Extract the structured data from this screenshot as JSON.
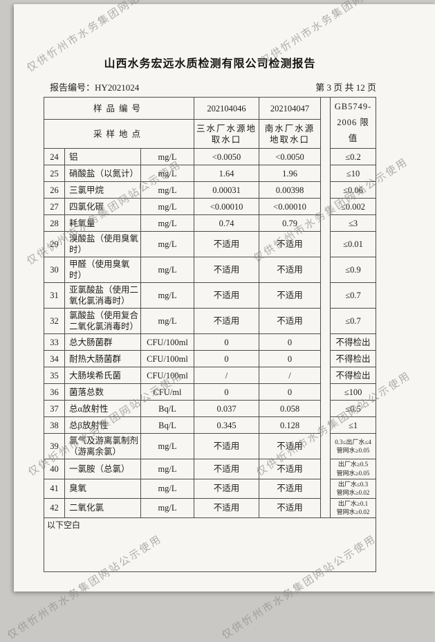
{
  "watermark": {
    "text": "仅供忻州市水务集团网站公示使用"
  },
  "header": {
    "title": "山西水务宏远水质检测有限公司检测报告",
    "report_no_label": "报告编号：",
    "report_no": "HY2021024",
    "page_info": "第 3 页 共 12 页"
  },
  "table": {
    "head": {
      "sample_id_label": "样品编号",
      "sampling_site_label": "采样地点",
      "sample1_id": "202104046",
      "sample2_id": "202104047",
      "sample1_site": "三水厂水源地取水口",
      "sample2_site": "南水厂水源地取水口",
      "limit_line1": "GB5749-",
      "limit_line2": "2006 限值"
    },
    "rows": [
      {
        "no": "24",
        "name": "铝",
        "unit": "mg/L",
        "v1": "<0.0050",
        "v2": "<0.0050",
        "limit": [
          "≤0.2"
        ]
      },
      {
        "no": "25",
        "name": "硝酸盐（以氮计）",
        "unit": "mg/L",
        "v1": "1.64",
        "v2": "1.96",
        "limit": [
          "≤10"
        ]
      },
      {
        "no": "26",
        "name": "三氯甲烷",
        "unit": "mg/L",
        "v1": "0.00031",
        "v2": "0.00398",
        "limit": [
          "≤0.06"
        ]
      },
      {
        "no": "27",
        "name": "四氯化碳",
        "unit": "mg/L",
        "v1": "<0.00010",
        "v2": "<0.00010",
        "limit": [
          "≤0.002"
        ]
      },
      {
        "no": "28",
        "name": "耗氧量",
        "unit": "mg/L",
        "v1": "0.74",
        "v2": "0.79",
        "limit": [
          "≤3"
        ]
      },
      {
        "no": "29",
        "name": "溴酸盐（使用臭氧时）",
        "unit": "mg/L",
        "v1": "不适用",
        "v2": "不适用",
        "limit": [
          "≤0.01"
        ]
      },
      {
        "no": "30",
        "name": "甲醛（使用臭氧时）",
        "unit": "mg/L",
        "v1": "不适用",
        "v2": "不适用",
        "limit": [
          "≤0.9"
        ]
      },
      {
        "no": "31",
        "name": "亚氯酸盐（使用二氧化氯消毒时）",
        "unit": "mg/L",
        "v1": "不适用",
        "v2": "不适用",
        "limit": [
          "≤0.7"
        ]
      },
      {
        "no": "32",
        "name": "氯酸盐（使用复合二氧化氯消毒时）",
        "unit": "mg/L",
        "v1": "不适用",
        "v2": "不适用",
        "limit": [
          "≤0.7"
        ]
      },
      {
        "no": "33",
        "name": "总大肠菌群",
        "unit": "CFU/100ml",
        "v1": "0",
        "v2": "0",
        "limit": [
          "不得检出"
        ]
      },
      {
        "no": "34",
        "name": "耐热大肠菌群",
        "unit": "CFU/100ml",
        "v1": "0",
        "v2": "0",
        "limit": [
          "不得检出"
        ]
      },
      {
        "no": "35",
        "name": "大肠埃希氏菌",
        "unit": "CFU/100ml",
        "v1": "/",
        "v2": "/",
        "limit": [
          "不得检出"
        ]
      },
      {
        "no": "36",
        "name": "菌落总数",
        "unit": "CFU/ml",
        "v1": "0",
        "v2": "0",
        "limit": [
          "≤100"
        ]
      },
      {
        "no": "37",
        "name": "总α放射性",
        "unit": "Bq/L",
        "v1": "0.037",
        "v2": "0.058",
        "limit": [
          "≤0.5"
        ]
      },
      {
        "no": "38",
        "name": "总β放射性",
        "unit": "Bq/L",
        "v1": "0.345",
        "v2": "0.128",
        "limit": [
          "≤1"
        ]
      },
      {
        "no": "39",
        "name": "氯气及游离氯制剂（游离余氯）",
        "unit": "mg/L",
        "v1": "不适用",
        "v2": "不适用",
        "limit": [
          "0.3≤出厂水≤4",
          "管网水≥0.05"
        ]
      },
      {
        "no": "40",
        "name": "一氯胺（总氯）",
        "unit": "mg/L",
        "v1": "不适用",
        "v2": "不适用",
        "limit": [
          "出厂水≥0.5",
          "管网水≥0.05"
        ]
      },
      {
        "no": "41",
        "name": "臭氧",
        "unit": "mg/L",
        "v1": "不适用",
        "v2": "不适用",
        "limit": [
          "出厂水≤0.3",
          "管网水≥0.02"
        ]
      },
      {
        "no": "42",
        "name": "二氧化氯",
        "unit": "mg/L",
        "v1": "不适用",
        "v2": "不适用",
        "limit": [
          "出厂水≥0.1",
          "管网水≥0.02"
        ]
      }
    ],
    "footer_note": "以下空白"
  }
}
